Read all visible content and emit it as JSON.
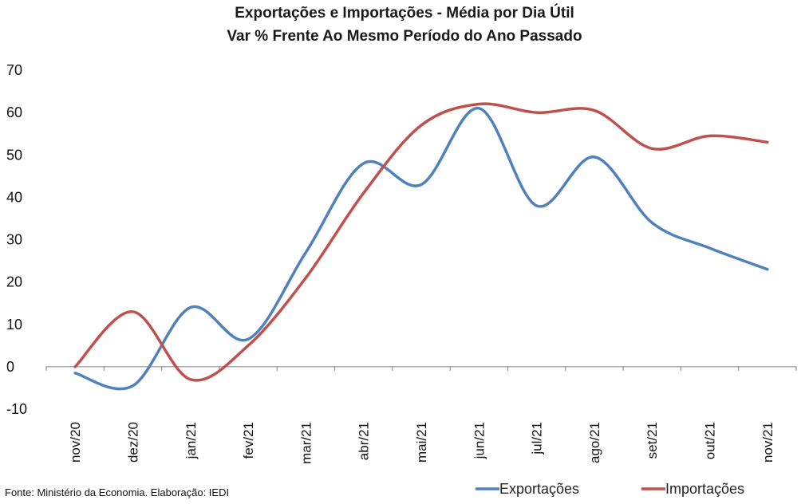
{
  "chart_data": {
    "type": "line",
    "title": "Exportações e Importações - Média por Dia Útil",
    "subtitle": "Var % Frente Ao Mesmo Período do Ano Passado",
    "categories": [
      "nov/20",
      "dez/20",
      "jan/21",
      "fev/21",
      "mar/21",
      "abr/21",
      "mai/21",
      "jun/21",
      "jul/21",
      "ago/21",
      "set/21",
      "out/21",
      "nov/21"
    ],
    "series": [
      {
        "name": "Exportações",
        "color": "#4f81bd",
        "values": [
          -1.5,
          -4.5,
          14,
          6.5,
          27,
          48,
          43,
          61,
          38,
          49.5,
          34,
          28,
          23
        ]
      },
      {
        "name": "Importações",
        "color": "#c0504d",
        "values": [
          0,
          13,
          -3,
          5,
          21,
          41,
          57,
          62,
          60,
          60.5,
          51.5,
          54.5,
          53
        ]
      }
    ],
    "ylim": [
      -10,
      70
    ],
    "yticks": [
      70,
      60,
      50,
      40,
      30,
      20,
      10,
      0,
      -10
    ],
    "legend": "bottom-right",
    "grid": false
  },
  "source": "Fonte: Ministério da Economia. Elaboração: IEDI"
}
